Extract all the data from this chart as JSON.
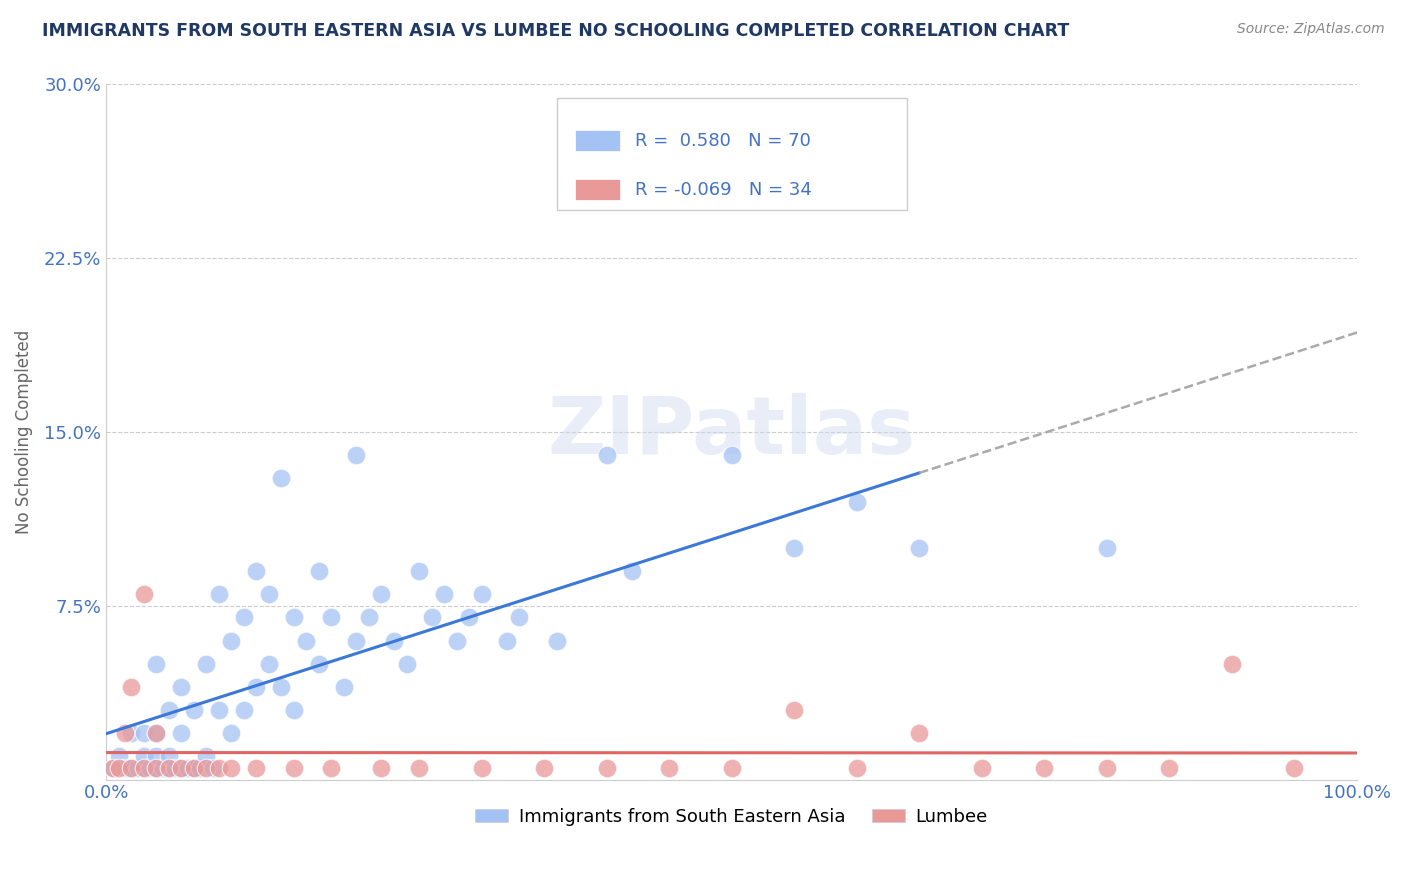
{
  "title": "IMMIGRANTS FROM SOUTH EASTERN ASIA VS LUMBEE NO SCHOOLING COMPLETED CORRELATION CHART",
  "source": "Source: ZipAtlas.com",
  "ylabel": "No Schooling Completed",
  "xlim": [
    0,
    1.0
  ],
  "ylim": [
    0,
    0.3
  ],
  "xticks": [
    0.0,
    0.25,
    0.5,
    0.75,
    1.0
  ],
  "xtick_labels": [
    "0.0%",
    "",
    "",
    "",
    "100.0%"
  ],
  "yticks": [
    0.0,
    0.075,
    0.15,
    0.225,
    0.3
  ],
  "ytick_labels": [
    "",
    "7.5%",
    "15.0%",
    "22.5%",
    "30.0%"
  ],
  "blue_R": 0.58,
  "blue_N": 70,
  "pink_R": -0.069,
  "pink_N": 34,
  "blue_color": "#a4c2f4",
  "pink_color": "#ea9999",
  "blue_line_color": "#3c78d8",
  "pink_line_color": "#e06666",
  "dashed_line_color": "#aaaaaa",
  "title_color": "#1f3864",
  "axis_color": "#4472c4",
  "background_color": "#ffffff",
  "grid_color": "#cccccc",
  "watermark": "ZIPatlas",
  "blue_scatter_x": [
    0.005,
    0.01,
    0.015,
    0.02,
    0.02,
    0.025,
    0.03,
    0.03,
    0.03,
    0.035,
    0.04,
    0.04,
    0.04,
    0.04,
    0.045,
    0.05,
    0.05,
    0.05,
    0.055,
    0.06,
    0.06,
    0.06,
    0.065,
    0.07,
    0.07,
    0.075,
    0.08,
    0.08,
    0.085,
    0.09,
    0.09,
    0.1,
    0.1,
    0.11,
    0.11,
    0.12,
    0.12,
    0.13,
    0.13,
    0.14,
    0.14,
    0.15,
    0.15,
    0.16,
    0.17,
    0.17,
    0.18,
    0.19,
    0.2,
    0.2,
    0.21,
    0.22,
    0.23,
    0.24,
    0.25,
    0.26,
    0.27,
    0.28,
    0.29,
    0.3,
    0.32,
    0.33,
    0.36,
    0.4,
    0.42,
    0.5,
    0.55,
    0.6,
    0.65,
    0.8
  ],
  "blue_scatter_y": [
    0.005,
    0.01,
    0.005,
    0.005,
    0.02,
    0.005,
    0.005,
    0.01,
    0.02,
    0.005,
    0.005,
    0.01,
    0.02,
    0.05,
    0.005,
    0.005,
    0.01,
    0.03,
    0.005,
    0.005,
    0.02,
    0.04,
    0.005,
    0.005,
    0.03,
    0.005,
    0.01,
    0.05,
    0.005,
    0.03,
    0.08,
    0.02,
    0.06,
    0.03,
    0.07,
    0.04,
    0.09,
    0.05,
    0.08,
    0.04,
    0.13,
    0.03,
    0.07,
    0.06,
    0.05,
    0.09,
    0.07,
    0.04,
    0.06,
    0.14,
    0.07,
    0.08,
    0.06,
    0.05,
    0.09,
    0.07,
    0.08,
    0.06,
    0.07,
    0.08,
    0.06,
    0.07,
    0.06,
    0.14,
    0.09,
    0.14,
    0.1,
    0.12,
    0.1,
    0.1
  ],
  "pink_scatter_x": [
    0.005,
    0.01,
    0.015,
    0.02,
    0.02,
    0.03,
    0.03,
    0.04,
    0.04,
    0.05,
    0.06,
    0.07,
    0.08,
    0.09,
    0.1,
    0.12,
    0.15,
    0.18,
    0.22,
    0.25,
    0.3,
    0.35,
    0.4,
    0.45,
    0.5,
    0.55,
    0.6,
    0.65,
    0.7,
    0.75,
    0.8,
    0.85,
    0.9,
    0.95
  ],
  "pink_scatter_y": [
    0.005,
    0.005,
    0.02,
    0.005,
    0.04,
    0.005,
    0.08,
    0.005,
    0.02,
    0.005,
    0.005,
    0.005,
    0.005,
    0.005,
    0.005,
    0.005,
    0.005,
    0.005,
    0.005,
    0.005,
    0.005,
    0.005,
    0.005,
    0.005,
    0.005,
    0.03,
    0.005,
    0.02,
    0.005,
    0.005,
    0.005,
    0.005,
    0.05,
    0.005
  ]
}
